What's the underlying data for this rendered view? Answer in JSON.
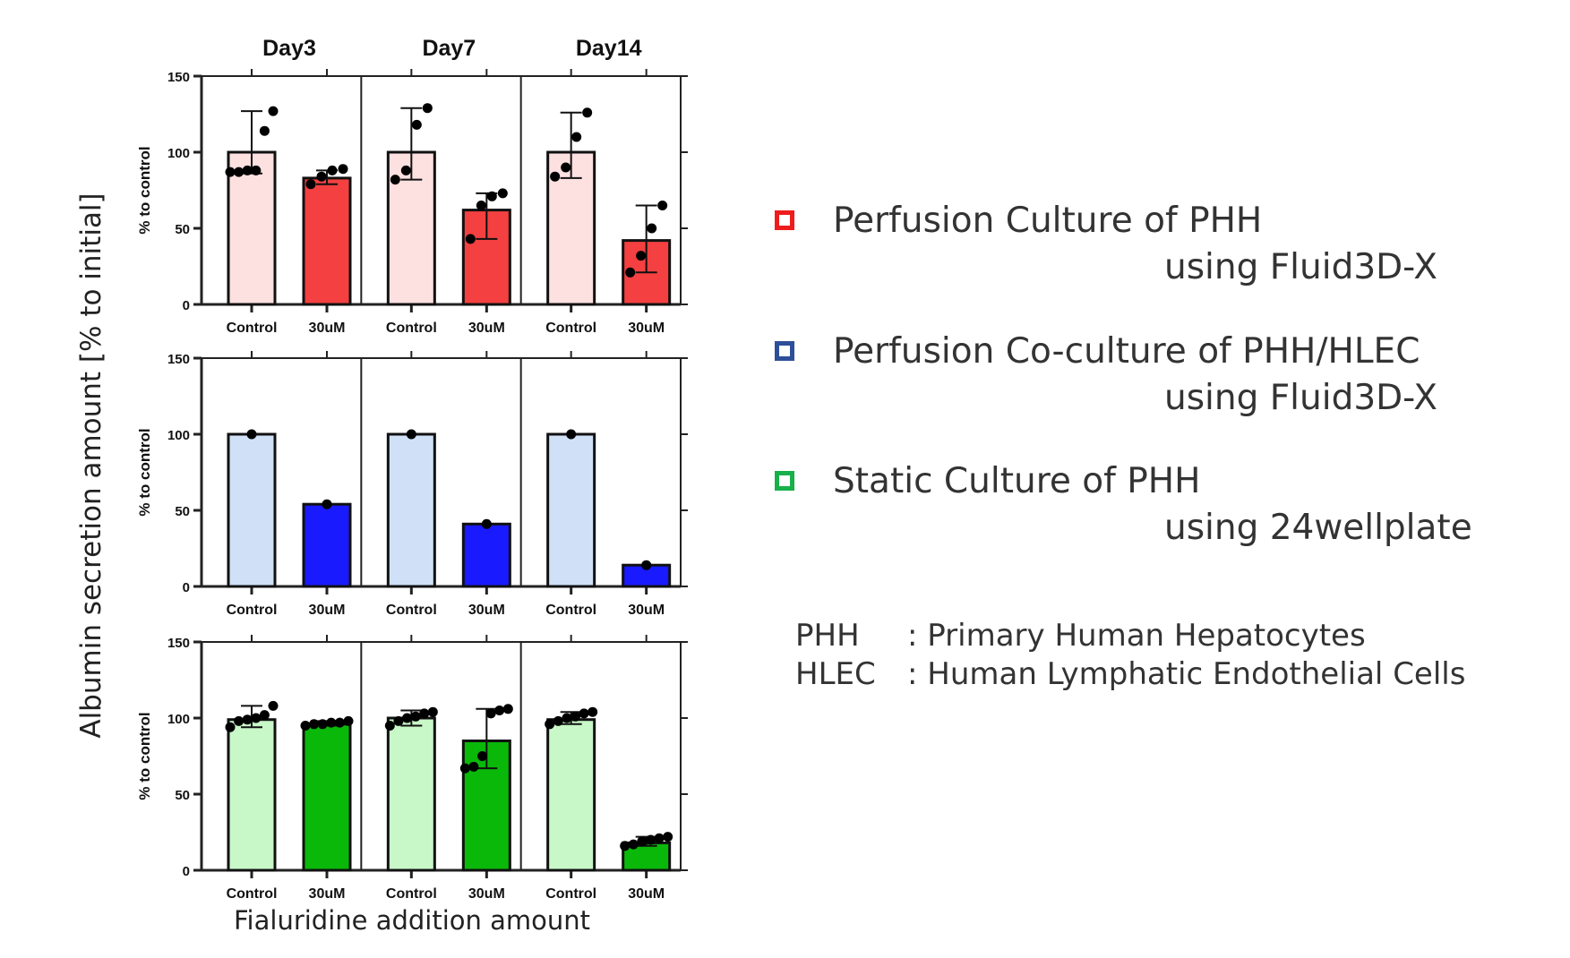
{
  "chart_data": {
    "type": "bar",
    "ylabel_outer": "Albumin secretion amount [% to initial]",
    "xlabel_outer": "Fialuridine addition amount",
    "panel_ylabel": "% to control",
    "ylim": [
      0,
      150
    ],
    "yticks": [
      "0",
      "50",
      "100",
      "150"
    ],
    "groups": [
      "Day3",
      "Day7",
      "Day14"
    ],
    "categories": [
      "Control",
      "30uM"
    ],
    "panels": [
      {
        "legend_index": 0,
        "colors": {
          "control": "#fde0e0",
          "treated": "#f44040"
        },
        "bars": [
          {
            "group": "Day3",
            "category": "Control",
            "value": 100,
            "err": [
              86,
              127
            ],
            "points": [
              87,
              87,
              88,
              88,
              114,
              127
            ]
          },
          {
            "group": "Day3",
            "category": "30uM",
            "value": 83,
            "err": [
              79,
              88
            ],
            "points": [
              79,
              84,
              88,
              89
            ]
          },
          {
            "group": "Day7",
            "category": "Control",
            "value": 100,
            "err": [
              82,
              129
            ],
            "points": [
              82,
              88,
              118,
              129
            ]
          },
          {
            "group": "Day7",
            "category": "30uM",
            "value": 62,
            "err": [
              43,
              73
            ],
            "points": [
              43,
              65,
              71,
              73
            ]
          },
          {
            "group": "Day14",
            "category": "Control",
            "value": 100,
            "err": [
              83,
              126
            ],
            "points": [
              84,
              90,
              110,
              126
            ]
          },
          {
            "group": "Day14",
            "category": "30uM",
            "value": 42,
            "err": [
              21,
              65
            ],
            "points": [
              21,
              32,
              50,
              65
            ]
          }
        ]
      },
      {
        "legend_index": 1,
        "colors": {
          "control": "#cfe0f7",
          "treated": "#1a1aff"
        },
        "bars": [
          {
            "group": "Day3",
            "category": "Control",
            "value": 100,
            "err": null,
            "points": [
              100
            ]
          },
          {
            "group": "Day3",
            "category": "30uM",
            "value": 54,
            "err": null,
            "points": [
              54
            ]
          },
          {
            "group": "Day7",
            "category": "Control",
            "value": 100,
            "err": null,
            "points": [
              100
            ]
          },
          {
            "group": "Day7",
            "category": "30uM",
            "value": 41,
            "err": null,
            "points": [
              41
            ]
          },
          {
            "group": "Day14",
            "category": "Control",
            "value": 100,
            "err": null,
            "points": [
              100
            ]
          },
          {
            "group": "Day14",
            "category": "30uM",
            "value": 14,
            "err": null,
            "points": [
              14
            ]
          }
        ]
      },
      {
        "legend_index": 2,
        "colors": {
          "control": "#c8f7c8",
          "treated": "#0ab80a"
        },
        "bars": [
          {
            "group": "Day3",
            "category": "Control",
            "value": 99,
            "err": [
              94,
              108
            ],
            "points": [
              94,
              98,
              99,
              100,
              102,
              108
            ]
          },
          {
            "group": "Day3",
            "category": "30uM",
            "value": 96,
            "err": [
              95,
              98
            ],
            "points": [
              95,
              96,
              96,
              97,
              97,
              98
            ]
          },
          {
            "group": "Day7",
            "category": "Control",
            "value": 100,
            "err": [
              95,
              105
            ],
            "points": [
              95,
              98,
              100,
              101,
              103,
              104
            ]
          },
          {
            "group": "Day7",
            "category": "30uM",
            "value": 85,
            "err": [
              67,
              106
            ],
            "points": [
              67,
              68,
              75,
              103,
              105,
              106
            ]
          },
          {
            "group": "Day14",
            "category": "Control",
            "value": 99,
            "err": [
              96,
              104
            ],
            "points": [
              96,
              98,
              100,
              101,
              103,
              104
            ]
          },
          {
            "group": "Day14",
            "category": "30uM",
            "value": 18,
            "err": [
              16,
              22
            ],
            "points": [
              16,
              17,
              19,
              20,
              21,
              22
            ]
          }
        ]
      }
    ]
  },
  "legend": {
    "items": [
      {
        "color": "#ee1c1c",
        "line1": "Perfusion Culture of PHH",
        "line2": "using Fluid3D-X"
      },
      {
        "color": "#2d4f9a",
        "line1": "Perfusion Co-culture of PHH/HLEC",
        "line2": "using Fluid3D-X"
      },
      {
        "color": "#18b04a",
        "line1": "Static Culture of PHH",
        "line2": "using 24wellplate"
      }
    ]
  },
  "abbreviations": [
    {
      "term": "PHH",
      "definition": ": Primary Human Hepatocytes"
    },
    {
      "term": "HLEC",
      "definition": ": Human Lymphatic Endothelial Cells"
    }
  ]
}
